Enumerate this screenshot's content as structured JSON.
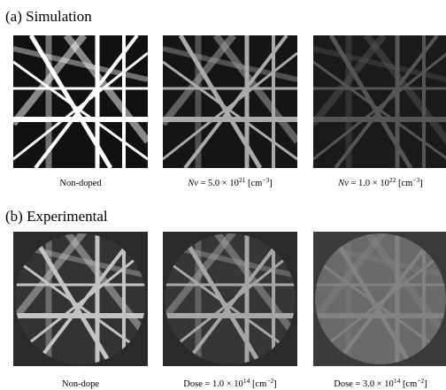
{
  "panels": [
    {
      "title": "(a) Simulation",
      "images": [
        {
          "caption": {
            "text": "Non-doped"
          }
        },
        {
          "caption": {
            "var": "Nv",
            "text": " = 5.0 × 10",
            "exp": "21",
            "unit": " [cm",
            "unit_exp": "−3",
            "close": "]"
          }
        },
        {
          "caption": {
            "var": "Nv",
            "text": " = 1.0 × 10",
            "exp": "22",
            "unit": " [cm",
            "unit_exp": "−3",
            "close": "]"
          }
        }
      ]
    },
    {
      "title": "(b) Experimental",
      "images": [
        {
          "caption": {
            "text": "Non-dope"
          }
        },
        {
          "caption": {
            "text": "Dose = 1.0 × 10",
            "exp": "14",
            "unit": " [cm",
            "unit_exp": "−2",
            "close": "]"
          }
        },
        {
          "caption": {
            "text": "Dose = 3.0 × 10",
            "exp": "14",
            "unit": " [cm",
            "unit_exp": "−2",
            "close": "]"
          }
        }
      ]
    }
  ]
}
